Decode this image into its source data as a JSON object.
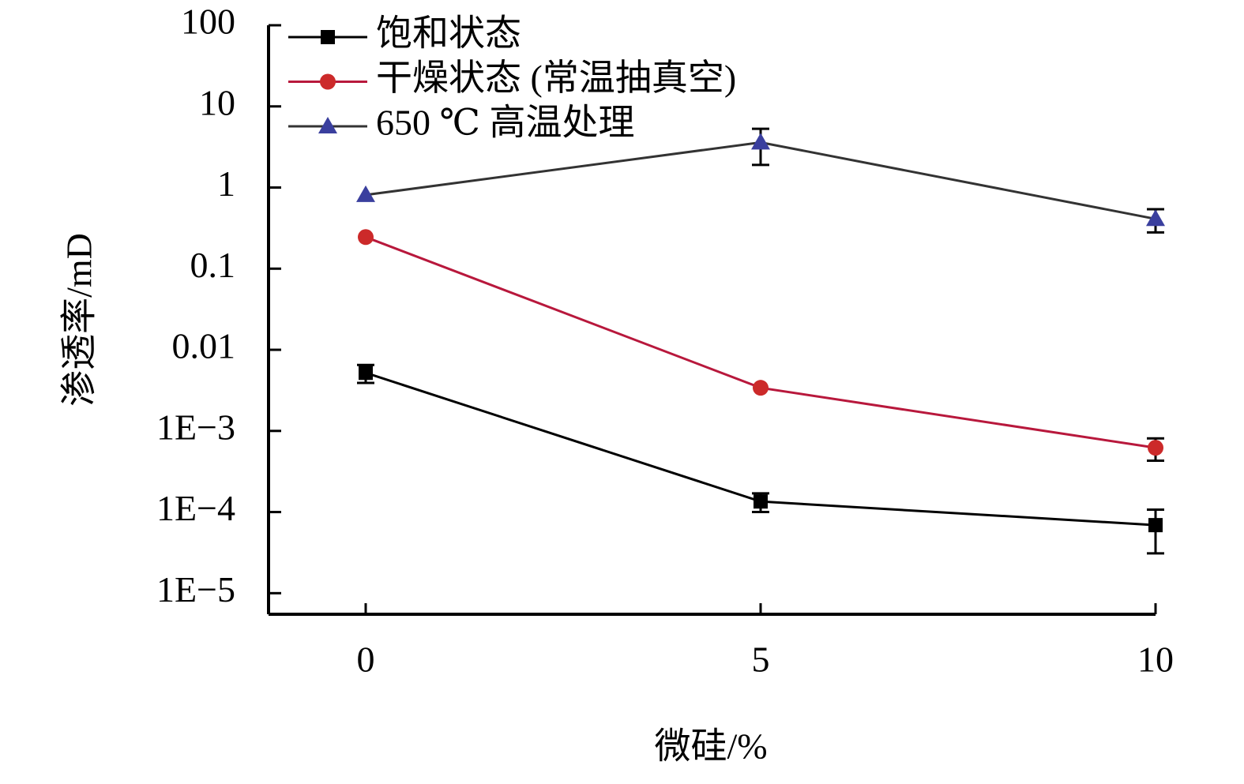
{
  "chart_data": {
    "type": "line",
    "x_label": "微硅/%",
    "y_label": "渗透率/mD",
    "x": [
      0,
      5,
      10
    ],
    "xlim": [
      -1.23,
      10
    ],
    "xticks": [
      0,
      5,
      10
    ],
    "ylim": [
      5.5e-06,
      100
    ],
    "log_y": true,
    "yticks": [
      100,
      10,
      1,
      0.1,
      0.01,
      {
        "value": 0.001,
        "label": "1E−3"
      },
      {
        "value": 0.0001,
        "label": "1E−4"
      },
      {
        "value": 1e-05,
        "label": "1E−5"
      }
    ],
    "legend": "top-left",
    "series": [
      {
        "name": "饱和状态",
        "color": "#000000",
        "line_color": "#000000",
        "marker": "square",
        "values": [
          0.0052,
          0.000135,
          6.9e-05
        ],
        "errors": [
          0.0013,
          3.5e-05,
          3.8e-05
        ]
      },
      {
        "name": "干燥状态 (常温抽真空)",
        "color": "#cc2a2a",
        "line_color": "#b8183c",
        "marker": "circle",
        "values": [
          0.245,
          0.0034,
          0.00062
        ],
        "errors": [
          null,
          null,
          0.00019
        ]
      },
      {
        "name": "650 ℃ 高温处理",
        "color": "#3a3f9e",
        "line_color": "#333333",
        "marker": "triangle",
        "values": [
          0.81,
          3.6,
          0.41
        ],
        "errors": [
          null,
          1.7,
          0.13
        ]
      }
    ]
  }
}
